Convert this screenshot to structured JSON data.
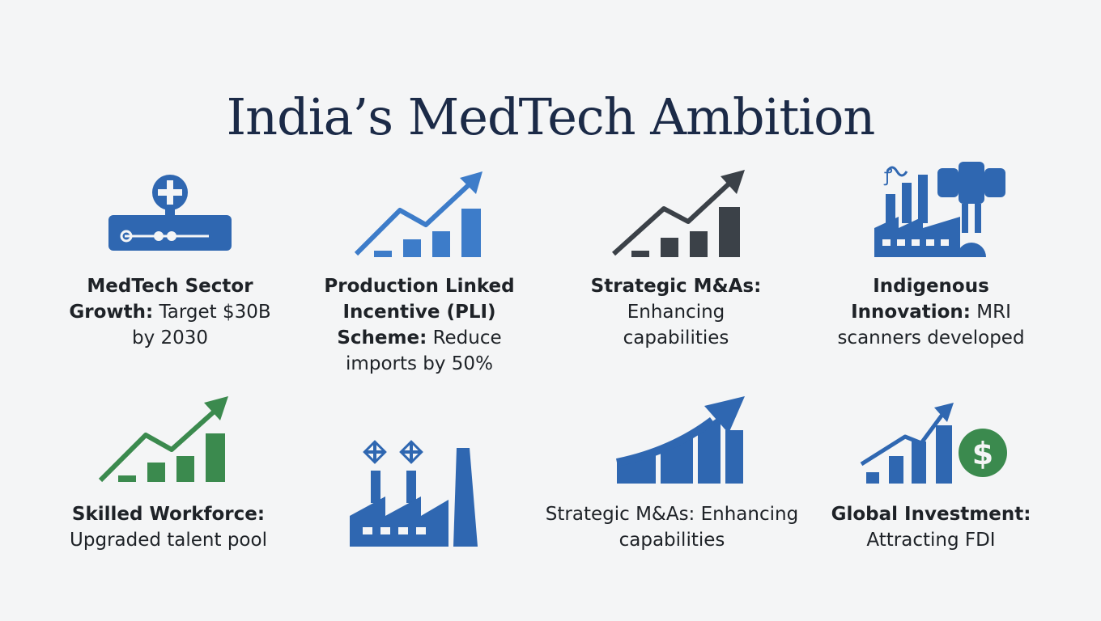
{
  "title": "India’s MedTech Ambition",
  "colors": {
    "blue": "#2f67b1",
    "light_blue": "#3d7cc9",
    "dark": "#3b4148",
    "green": "#3b8a4e",
    "title": "#1b2a47"
  },
  "cards": [
    {
      "icon": "medical-device-icon",
      "bold": "MedTech Sector Growth:",
      "text": "Target $30B by 2030"
    },
    {
      "icon": "growth-chart-icon",
      "bold": "Production Linked Incentive (PLI) Scheme:",
      "text": "Reduce imports by 50%"
    },
    {
      "icon": "growth-chart-icon",
      "bold": "Strategic M&As:",
      "text": "Enhancing capabilities"
    },
    {
      "icon": "factory-mri-icon",
      "bold": "Indigenous Innovation:",
      "text": "MRI scanners developed"
    },
    {
      "icon": "growth-chart-icon",
      "bold": "Skilled Workforce:",
      "text": "Upgraded talent pool"
    },
    {
      "icon": "factory-icon",
      "bold": "",
      "text": ""
    },
    {
      "icon": "growth-arrow-icon",
      "bold": "",
      "text": "Strategic M&As: Enhancing capabilities"
    },
    {
      "icon": "investment-chart-icon",
      "bold": "Global Investment:",
      "text": "Attracting FDI"
    }
  ]
}
